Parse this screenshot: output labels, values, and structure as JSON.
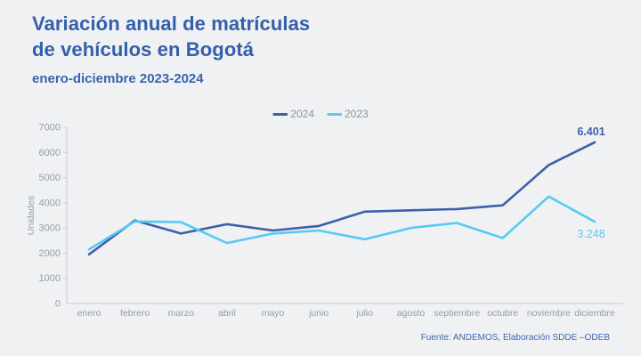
{
  "header": {
    "title_line1": "Variación anual de matrículas",
    "title_line2": "de vehículos en Bogotá",
    "subtitle": "enero-diciembre 2023-2024"
  },
  "legend": {
    "items": [
      {
        "label": "2024",
        "color": "#3d60aa"
      },
      {
        "label": "2023",
        "color": "#55cbf3"
      }
    ]
  },
  "chart_data": {
    "type": "line",
    "title": "Variación anual de matrículas de vehículos en Bogotá",
    "subtitle": "enero-diciembre 2023-2024",
    "xlabel": "",
    "ylabel": "Unidades",
    "categories": [
      "enero",
      "febrero",
      "marzo",
      "abril",
      "mayo",
      "junio",
      "julio",
      "agosto",
      "septiembre",
      "octubre",
      "noviembre",
      "diciembre"
    ],
    "series": [
      {
        "name": "2024",
        "color": "#3d60aa",
        "values": [
          1950,
          3300,
          2780,
          3150,
          2900,
          3080,
          3650,
          3700,
          3750,
          3900,
          5500,
          6401
        ],
        "end_label": "6.401"
      },
      {
        "name": "2023",
        "color": "#55cbf3",
        "values": [
          2150,
          3260,
          3230,
          2400,
          2780,
          2900,
          2550,
          3000,
          3200,
          2600,
          4250,
          3248
        ],
        "end_label": "3.248"
      }
    ],
    "ylim": [
      0,
      7000
    ],
    "ytick_step": 1000,
    "grid": false,
    "legend_position": "top-center"
  },
  "colors": {
    "background": "#f0f1f3",
    "title": "#335fab",
    "axis": "#c7ccd5",
    "tick_text": "#939cac",
    "footer_text": "#3f67b3"
  },
  "footer": {
    "source": "Fuente: ANDEMOS, Elaboración SDDE –ODEB"
  }
}
